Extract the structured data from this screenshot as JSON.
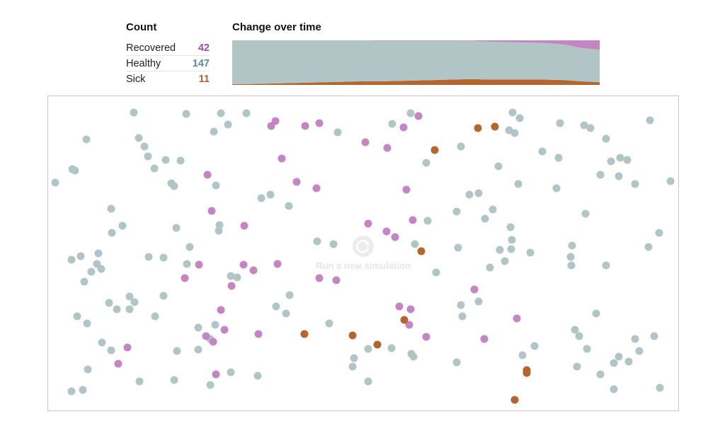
{
  "count_panel": {
    "heading": "Count",
    "rows": [
      {
        "label": "Recovered",
        "value": "42",
        "color": "#9e4c9f"
      },
      {
        "label": "Healthy",
        "value": "147",
        "color": "#5e8a93"
      },
      {
        "label": "Sick",
        "value": "11",
        "color": "#b3612a"
      }
    ]
  },
  "change_panel": {
    "heading": "Change over time"
  },
  "simulation": {
    "rerun_label": "Run a new simulation",
    "rerun_icon": "refresh-icon"
  },
  "colors": {
    "healthy": "#b2c5c6",
    "sick": "#b5652e",
    "recovered": "#c486c2"
  },
  "chart_data": {
    "type": "area",
    "title": "Change over time",
    "x": [
      0,
      0.05,
      0.1,
      0.15,
      0.2,
      0.25,
      0.3,
      0.35,
      0.4,
      0.45,
      0.5,
      0.55,
      0.6,
      0.65,
      0.7,
      0.75,
      0.8,
      0.85,
      0.9,
      0.95,
      1.0
    ],
    "series": [
      {
        "name": "Sick",
        "values": [
          0.02,
          0.02,
          0.03,
          0.04,
          0.05,
          0.06,
          0.07,
          0.08,
          0.08,
          0.09,
          0.1,
          0.11,
          0.12,
          0.13,
          0.12,
          0.12,
          0.12,
          0.12,
          0.11,
          0.08,
          0.06
        ]
      },
      {
        "name": "Healthy",
        "values": [
          0.98,
          0.98,
          0.97,
          0.96,
          0.95,
          0.94,
          0.93,
          0.92,
          0.91,
          0.9,
          0.89,
          0.88,
          0.87,
          0.86,
          0.85,
          0.84,
          0.83,
          0.82,
          0.8,
          0.75,
          0.73
        ]
      },
      {
        "name": "Recovered",
        "values": [
          0,
          0,
          0,
          0,
          0,
          0,
          0,
          0,
          0.01,
          0.01,
          0.01,
          0.01,
          0.01,
          0.01,
          0.03,
          0.04,
          0.05,
          0.06,
          0.09,
          0.17,
          0.21
        ]
      }
    ]
  },
  "dots": [
    {
      "s": "h",
      "x": 188,
      "y": 158
    },
    {
      "s": "h",
      "x": 262,
      "y": 160
    },
    {
      "s": "h",
      "x": 311,
      "y": 159
    },
    {
      "s": "h",
      "x": 347,
      "y": 159
    },
    {
      "s": "h",
      "x": 321,
      "y": 175
    },
    {
      "s": "h",
      "x": 301,
      "y": 185
    },
    {
      "s": "h",
      "x": 121,
      "y": 196
    },
    {
      "s": "h",
      "x": 195,
      "y": 194
    },
    {
      "s": "h",
      "x": 203,
      "y": 206
    },
    {
      "s": "h",
      "x": 208,
      "y": 220
    },
    {
      "s": "h",
      "x": 217,
      "y": 237
    },
    {
      "s": "h",
      "x": 233,
      "y": 225
    },
    {
      "s": "h",
      "x": 254,
      "y": 226
    },
    {
      "s": "h",
      "x": 101,
      "y": 238
    },
    {
      "s": "h",
      "x": 105,
      "y": 240
    },
    {
      "s": "h",
      "x": 77,
      "y": 257
    },
    {
      "s": "h",
      "x": 241,
      "y": 258
    },
    {
      "s": "h",
      "x": 245,
      "y": 262
    },
    {
      "s": "h",
      "x": 304,
      "y": 261
    },
    {
      "s": "h",
      "x": 368,
      "y": 279
    },
    {
      "s": "h",
      "x": 381,
      "y": 274
    },
    {
      "s": "h",
      "x": 407,
      "y": 290
    },
    {
      "s": "h",
      "x": 156,
      "y": 294
    },
    {
      "s": "h",
      "x": 172,
      "y": 318
    },
    {
      "s": "h",
      "x": 157,
      "y": 328
    },
    {
      "s": "h",
      "x": 248,
      "y": 321
    },
    {
      "s": "h",
      "x": 309,
      "y": 317
    },
    {
      "s": "h",
      "x": 308,
      "y": 325
    },
    {
      "s": "h",
      "x": 267,
      "y": 348
    },
    {
      "s": "h",
      "x": 138,
      "y": 357
    },
    {
      "s": "h",
      "x": 113,
      "y": 361
    },
    {
      "s": "h",
      "x": 100,
      "y": 366
    },
    {
      "s": "h",
      "x": 209,
      "y": 362
    },
    {
      "s": "h",
      "x": 230,
      "y": 363
    },
    {
      "s": "h",
      "x": 136,
      "y": 372
    },
    {
      "s": "h",
      "x": 142,
      "y": 379
    },
    {
      "s": "h",
      "x": 128,
      "y": 383
    },
    {
      "s": "h",
      "x": 118,
      "y": 397
    },
    {
      "s": "h",
      "x": 263,
      "y": 372
    },
    {
      "s": "h",
      "x": 325,
      "y": 389
    },
    {
      "s": "h",
      "x": 334,
      "y": 391
    },
    {
      "s": "h",
      "x": 447,
      "y": 340
    },
    {
      "s": "h",
      "x": 470,
      "y": 344
    },
    {
      "s": "h",
      "x": 476,
      "y": 186
    },
    {
      "s": "h",
      "x": 553,
      "y": 174
    },
    {
      "s": "h",
      "x": 579,
      "y": 159
    },
    {
      "s": "h",
      "x": 601,
      "y": 229
    },
    {
      "s": "h",
      "x": 650,
      "y": 206
    },
    {
      "s": "h",
      "x": 662,
      "y": 274
    },
    {
      "s": "h",
      "x": 675,
      "y": 272
    },
    {
      "s": "h",
      "x": 703,
      "y": 234
    },
    {
      "s": "h",
      "x": 723,
      "y": 158
    },
    {
      "s": "h",
      "x": 733,
      "y": 166
    },
    {
      "s": "h",
      "x": 718,
      "y": 183
    },
    {
      "s": "h",
      "x": 726,
      "y": 187
    },
    {
      "s": "h",
      "x": 765,
      "y": 213
    },
    {
      "s": "h",
      "x": 790,
      "y": 173
    },
    {
      "s": "h",
      "x": 788,
      "y": 222
    },
    {
      "s": "h",
      "x": 824,
      "y": 176
    },
    {
      "s": "h",
      "x": 833,
      "y": 180
    },
    {
      "s": "h",
      "x": 855,
      "y": 195
    },
    {
      "s": "h",
      "x": 917,
      "y": 169
    },
    {
      "s": "h",
      "x": 862,
      "y": 227
    },
    {
      "s": "h",
      "x": 875,
      "y": 222
    },
    {
      "s": "h",
      "x": 885,
      "y": 225
    },
    {
      "s": "h",
      "x": 847,
      "y": 246
    },
    {
      "s": "h",
      "x": 873,
      "y": 248
    },
    {
      "s": "h",
      "x": 896,
      "y": 259
    },
    {
      "s": "h",
      "x": 946,
      "y": 255
    },
    {
      "s": "h",
      "x": 731,
      "y": 259
    },
    {
      "s": "h",
      "x": 785,
      "y": 265
    },
    {
      "s": "h",
      "x": 644,
      "y": 298
    },
    {
      "s": "h",
      "x": 695,
      "y": 295
    },
    {
      "s": "h",
      "x": 684,
      "y": 308
    },
    {
      "s": "h",
      "x": 603,
      "y": 311
    },
    {
      "s": "h",
      "x": 720,
      "y": 320
    },
    {
      "s": "h",
      "x": 722,
      "y": 338
    },
    {
      "s": "h",
      "x": 721,
      "y": 351
    },
    {
      "s": "h",
      "x": 705,
      "y": 352
    },
    {
      "s": "h",
      "x": 748,
      "y": 356
    },
    {
      "s": "h",
      "x": 712,
      "y": 368
    },
    {
      "s": "h",
      "x": 691,
      "y": 377
    },
    {
      "s": "h",
      "x": 646,
      "y": 349
    },
    {
      "s": "h",
      "x": 585,
      "y": 344
    },
    {
      "s": "h",
      "x": 615,
      "y": 384
    },
    {
      "s": "h",
      "x": 826,
      "y": 301
    },
    {
      "s": "h",
      "x": 807,
      "y": 346
    },
    {
      "s": "h",
      "x": 805,
      "y": 362
    },
    {
      "s": "h",
      "x": 806,
      "y": 374
    },
    {
      "s": "h",
      "x": 855,
      "y": 374
    },
    {
      "s": "h",
      "x": 915,
      "y": 348
    },
    {
      "s": "h",
      "x": 930,
      "y": 328
    },
    {
      "s": "h",
      "x": 182,
      "y": 418
    },
    {
      "s": "h",
      "x": 189,
      "y": 426
    },
    {
      "s": "h",
      "x": 153,
      "y": 427
    },
    {
      "s": "h",
      "x": 164,
      "y": 436
    },
    {
      "s": "h",
      "x": 182,
      "y": 436
    },
    {
      "s": "h",
      "x": 230,
      "y": 417
    },
    {
      "s": "h",
      "x": 218,
      "y": 446
    },
    {
      "s": "h",
      "x": 108,
      "y": 446
    },
    {
      "s": "h",
      "x": 122,
      "y": 456
    },
    {
      "s": "h",
      "x": 389,
      "y": 432
    },
    {
      "s": "h",
      "x": 408,
      "y": 416
    },
    {
      "s": "h",
      "x": 403,
      "y": 442
    },
    {
      "s": "h",
      "x": 279,
      "y": 462
    },
    {
      "s": "h",
      "x": 303,
      "y": 458
    },
    {
      "s": "h",
      "x": 464,
      "y": 456
    },
    {
      "s": "h",
      "x": 650,
      "y": 430
    },
    {
      "s": "h",
      "x": 675,
      "y": 425
    },
    {
      "s": "h",
      "x": 652,
      "y": 446
    },
    {
      "s": "h",
      "x": 841,
      "y": 442
    },
    {
      "s": "h",
      "x": 811,
      "y": 465
    },
    {
      "s": "h",
      "x": 817,
      "y": 474
    },
    {
      "s": "h",
      "x": 828,
      "y": 492
    },
    {
      "s": "h",
      "x": 754,
      "y": 488
    },
    {
      "s": "h",
      "x": 737,
      "y": 501
    },
    {
      "s": "h",
      "x": 896,
      "y": 478
    },
    {
      "s": "h",
      "x": 923,
      "y": 474
    },
    {
      "s": "h",
      "x": 902,
      "y": 495
    },
    {
      "s": "h",
      "x": 873,
      "y": 503
    },
    {
      "s": "h",
      "x": 887,
      "y": 510
    },
    {
      "s": "h",
      "x": 866,
      "y": 512
    },
    {
      "s": "h",
      "x": 847,
      "y": 528
    },
    {
      "s": "h",
      "x": 814,
      "y": 517
    },
    {
      "s": "h",
      "x": 866,
      "y": 549
    },
    {
      "s": "h",
      "x": 931,
      "y": 547
    },
    {
      "s": "h",
      "x": 143,
      "y": 483
    },
    {
      "s": "h",
      "x": 156,
      "y": 494
    },
    {
      "s": "h",
      "x": 249,
      "y": 495
    },
    {
      "s": "h",
      "x": 279,
      "y": 493
    },
    {
      "s": "h",
      "x": 296,
      "y": 478
    },
    {
      "s": "h",
      "x": 123,
      "y": 521
    },
    {
      "s": "h",
      "x": 196,
      "y": 538
    },
    {
      "s": "h",
      "x": 245,
      "y": 536
    },
    {
      "s": "h",
      "x": 296,
      "y": 543
    },
    {
      "s": "h",
      "x": 325,
      "y": 525
    },
    {
      "s": "h",
      "x": 363,
      "y": 530
    },
    {
      "s": "h",
      "x": 100,
      "y": 552
    },
    {
      "s": "h",
      "x": 116,
      "y": 550
    },
    {
      "s": "h",
      "x": 519,
      "y": 492
    },
    {
      "s": "h",
      "x": 552,
      "y": 491
    },
    {
      "s": "h",
      "x": 580,
      "y": 499
    },
    {
      "s": "h",
      "x": 583,
      "y": 503
    },
    {
      "s": "h",
      "x": 499,
      "y": 505
    },
    {
      "s": "h",
      "x": 497,
      "y": 517
    },
    {
      "s": "h",
      "x": 644,
      "y": 511
    },
    {
      "s": "h",
      "x": 519,
      "y": 538
    },
    {
      "s": "r",
      "x": 388,
      "y": 170
    },
    {
      "s": "r",
      "x": 382,
      "y": 177
    },
    {
      "s": "r",
      "x": 430,
      "y": 177
    },
    {
      "s": "r",
      "x": 450,
      "y": 173
    },
    {
      "s": "r",
      "x": 397,
      "y": 223
    },
    {
      "s": "r",
      "x": 292,
      "y": 246
    },
    {
      "s": "r",
      "x": 418,
      "y": 256
    },
    {
      "s": "r",
      "x": 446,
      "y": 265
    },
    {
      "s": "r",
      "x": 298,
      "y": 297
    },
    {
      "s": "r",
      "x": 344,
      "y": 318
    },
    {
      "s": "r",
      "x": 515,
      "y": 200
    },
    {
      "s": "r",
      "x": 546,
      "y": 208
    },
    {
      "s": "r",
      "x": 569,
      "y": 179
    },
    {
      "s": "r",
      "x": 590,
      "y": 163
    },
    {
      "s": "r",
      "x": 573,
      "y": 267
    },
    {
      "s": "r",
      "x": 582,
      "y": 310
    },
    {
      "s": "r",
      "x": 519,
      "y": 315
    },
    {
      "s": "r",
      "x": 545,
      "y": 326
    },
    {
      "s": "r",
      "x": 557,
      "y": 334
    },
    {
      "s": "r",
      "x": 280,
      "y": 373
    },
    {
      "s": "r",
      "x": 260,
      "y": 392
    },
    {
      "s": "r",
      "x": 343,
      "y": 373
    },
    {
      "s": "r",
      "x": 357,
      "y": 381
    },
    {
      "s": "r",
      "x": 326,
      "y": 403
    },
    {
      "s": "r",
      "x": 391,
      "y": 372
    },
    {
      "s": "r",
      "x": 450,
      "y": 392
    },
    {
      "s": "r",
      "x": 474,
      "y": 395
    },
    {
      "s": "r",
      "x": 311,
      "y": 437
    },
    {
      "s": "r",
      "x": 316,
      "y": 465
    },
    {
      "s": "r",
      "x": 290,
      "y": 474
    },
    {
      "s": "r",
      "x": 300,
      "y": 482
    },
    {
      "s": "r",
      "x": 364,
      "y": 471
    },
    {
      "s": "r",
      "x": 563,
      "y": 432
    },
    {
      "s": "r",
      "x": 579,
      "y": 436
    },
    {
      "s": "r",
      "x": 577,
      "y": 458
    },
    {
      "s": "r",
      "x": 601,
      "y": 475
    },
    {
      "s": "r",
      "x": 669,
      "y": 408
    },
    {
      "s": "r",
      "x": 729,
      "y": 449
    },
    {
      "s": "r",
      "x": 683,
      "y": 478
    },
    {
      "s": "r",
      "x": 179,
      "y": 490
    },
    {
      "s": "r",
      "x": 166,
      "y": 513
    },
    {
      "s": "r",
      "x": 304,
      "y": 528
    },
    {
      "s": "s",
      "x": 674,
      "y": 180
    },
    {
      "s": "s",
      "x": 698,
      "y": 178
    },
    {
      "s": "s",
      "x": 613,
      "y": 211
    },
    {
      "s": "s",
      "x": 594,
      "y": 354
    },
    {
      "s": "s",
      "x": 570,
      "y": 451
    },
    {
      "s": "s",
      "x": 429,
      "y": 471
    },
    {
      "s": "s",
      "x": 497,
      "y": 473
    },
    {
      "s": "s",
      "x": 532,
      "y": 486
    },
    {
      "s": "s",
      "x": 743,
      "y": 522
    },
    {
      "s": "s",
      "x": 743,
      "y": 526
    },
    {
      "s": "s",
      "x": 726,
      "y": 564
    }
  ]
}
